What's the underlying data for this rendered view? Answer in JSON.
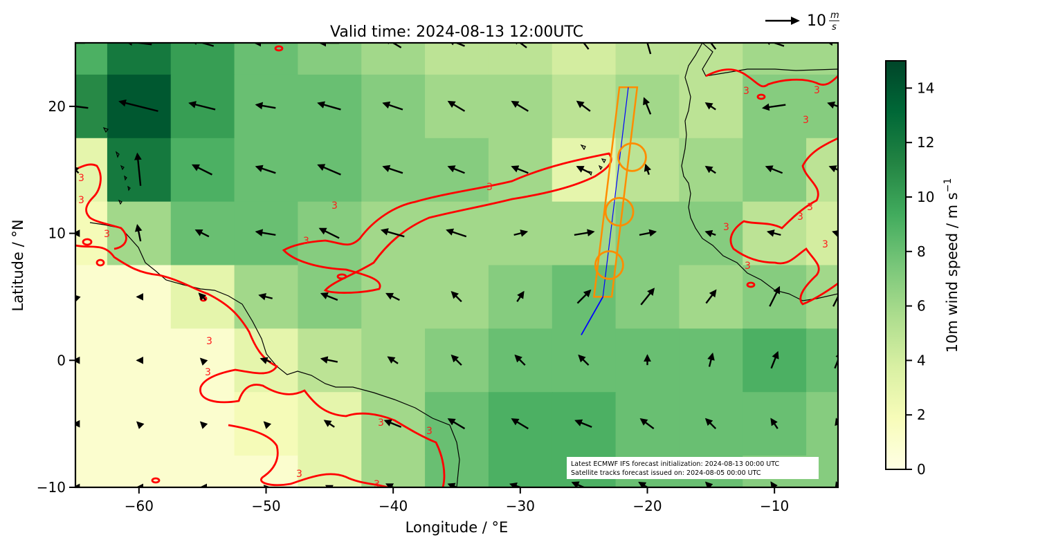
{
  "chart_data": {
    "type": "map-wind-field",
    "title": "Valid time: 2024-08-13 12:00UTC",
    "xlabel": "Longitude / °E",
    "ylabel": "Latitude / °N",
    "xlim": [
      -65,
      -5
    ],
    "ylim": [
      -10,
      25
    ],
    "xticks": [
      -60,
      -50,
      -40,
      -30,
      -20,
      -10
    ],
    "xtick_labels": [
      "−60",
      "−50",
      "−40",
      "−30",
      "−20",
      "−10"
    ],
    "yticks": [
      -10,
      0,
      10,
      20
    ],
    "ytick_labels": [
      "−10",
      "0",
      "10",
      "20"
    ],
    "colorbar": {
      "label_main": "10m wind speed / m s",
      "label_exp": "−1",
      "colormap": "YlGn",
      "range": [
        0,
        15
      ],
      "ticks": [
        0,
        2,
        4,
        6,
        8,
        10,
        12,
        14
      ],
      "tick_labels": [
        "0",
        "2",
        "4",
        "6",
        "8",
        "10",
        "12",
        "14"
      ],
      "colors": [
        "#ffffe5",
        "#f7fcb9",
        "#d9f0a3",
        "#addd8e",
        "#78c679",
        "#41ab5d",
        "#238443",
        "#006837",
        "#004529"
      ]
    },
    "quiver_key": {
      "value": "10",
      "unit_num": "m",
      "unit_den": "s"
    },
    "contour": {
      "level_label": "3",
      "color": "#ff0000"
    },
    "wind_field": {
      "lons": [
        -65,
        -60,
        -55,
        -50,
        -45,
        -40,
        -35,
        -30,
        -25,
        -20,
        -15,
        -10,
        -5
      ],
      "lats": [
        25,
        20,
        15,
        10,
        5,
        0,
        -5,
        -10
      ],
      "u": [
        [
          -6,
          -8,
          -7,
          -7,
          -6,
          -5,
          -5,
          -4,
          -3,
          -2,
          -3,
          -6,
          -7
        ],
        [
          -8,
          -12,
          -8,
          -6,
          -7,
          -6,
          -5,
          -5,
          -4,
          -2,
          -3,
          -7,
          -6
        ],
        [
          -2,
          -1,
          -6,
          -6,
          -7,
          -6,
          -5,
          -5,
          -4,
          -1,
          -3,
          -5,
          -5
        ],
        [
          -1,
          -1,
          -4,
          -6,
          -6,
          -7,
          -6,
          4,
          6,
          5,
          -3,
          -4,
          -3
        ],
        [
          -1,
          -1,
          -2,
          -4,
          -5,
          -4,
          -3,
          2,
          4,
          4,
          3,
          3,
          3
        ],
        [
          -1,
          -1,
          -1,
          -3,
          -5,
          -3,
          -3,
          -3,
          -3,
          0,
          1,
          2,
          2
        ],
        [
          -1,
          -1,
          -1,
          -1,
          -3,
          -5,
          -5,
          -5,
          -5,
          -4,
          -3,
          -2,
          -1
        ],
        [
          -1,
          -1,
          -1,
          -1,
          -2,
          -4,
          -5,
          -6,
          -7,
          -5,
          -3,
          -2,
          -1
        ]
      ],
      "v": [
        [
          0,
          1,
          2,
          0,
          0,
          3,
          2,
          3,
          4,
          7,
          4,
          2,
          1
        ],
        [
          1,
          3,
          2,
          1,
          2,
          2,
          3,
          3,
          3,
          5,
          2,
          -1,
          2
        ],
        [
          2,
          10,
          3,
          2,
          3,
          2,
          2,
          2,
          2,
          3,
          2,
          2,
          2
        ],
        [
          0,
          5,
          2,
          1,
          3,
          2,
          2,
          1,
          1,
          1,
          1,
          1,
          1
        ],
        [
          1,
          0,
          2,
          1,
          2,
          2,
          3,
          3,
          4,
          5,
          4,
          6,
          6
        ],
        [
          0,
          0,
          1,
          1,
          1,
          2,
          3,
          3,
          3,
          3,
          4,
          5,
          5
        ],
        [
          0,
          1,
          1,
          1,
          2,
          2,
          3,
          3,
          2,
          3,
          3,
          3,
          3
        ],
        [
          0,
          0,
          0,
          1,
          1,
          2,
          2,
          2,
          3,
          3,
          3,
          3,
          3
        ]
      ]
    },
    "speed_field": {
      "lons": [
        -65,
        -60,
        -55,
        -50,
        -45,
        -40,
        -35,
        -30,
        -25,
        -20,
        -15,
        -10,
        -5
      ],
      "lats": [
        25,
        20,
        15,
        10,
        5,
        0,
        -5,
        -10
      ],
      "values": [
        [
          9,
          12,
          10,
          8,
          7,
          6,
          5,
          5,
          4,
          5,
          5,
          6,
          6
        ],
        [
          11,
          14,
          10,
          8,
          8,
          7,
          6,
          6,
          5,
          6,
          5,
          7,
          7
        ],
        [
          3,
          12,
          9,
          8,
          8,
          7,
          7,
          6,
          3,
          5,
          6,
          7,
          5
        ],
        [
          2,
          6,
          8,
          8,
          7,
          6,
          6,
          6,
          6,
          7,
          7,
          5,
          4
        ],
        [
          1,
          1,
          3,
          6,
          7,
          6,
          6,
          7,
          8,
          7,
          6,
          7,
          6
        ],
        [
          1,
          1,
          1,
          3,
          5,
          6,
          7,
          8,
          8,
          8,
          8,
          9,
          8
        ],
        [
          1,
          1,
          1,
          2,
          3,
          6,
          8,
          9,
          9,
          8,
          8,
          8,
          7
        ],
        [
          1,
          1,
          1,
          1,
          3,
          6,
          8,
          9,
          9,
          8,
          8,
          7,
          7
        ]
      ]
    },
    "satellite_track": {
      "color": "#ff8c00",
      "centerline": [
        [
          -21.5,
          21.5
        ],
        [
          -23.5,
          5.0
        ]
      ],
      "circles": [
        [
          -21.2,
          16.0
        ],
        [
          -22.2,
          11.7
        ],
        [
          -23.0,
          7.5
        ]
      ],
      "extension_color": "#0000ff",
      "extension": [
        [
          -23.5,
          5.0
        ],
        [
          -25.2,
          2.0
        ]
      ]
    },
    "annotation_lines": [
      "Latest ECMWF IFS forecast initialization: 2024-08-13 00:00 UTC",
      "Satellite tracks forecast issued on: 2024-08-05 00:00 UTC"
    ]
  }
}
